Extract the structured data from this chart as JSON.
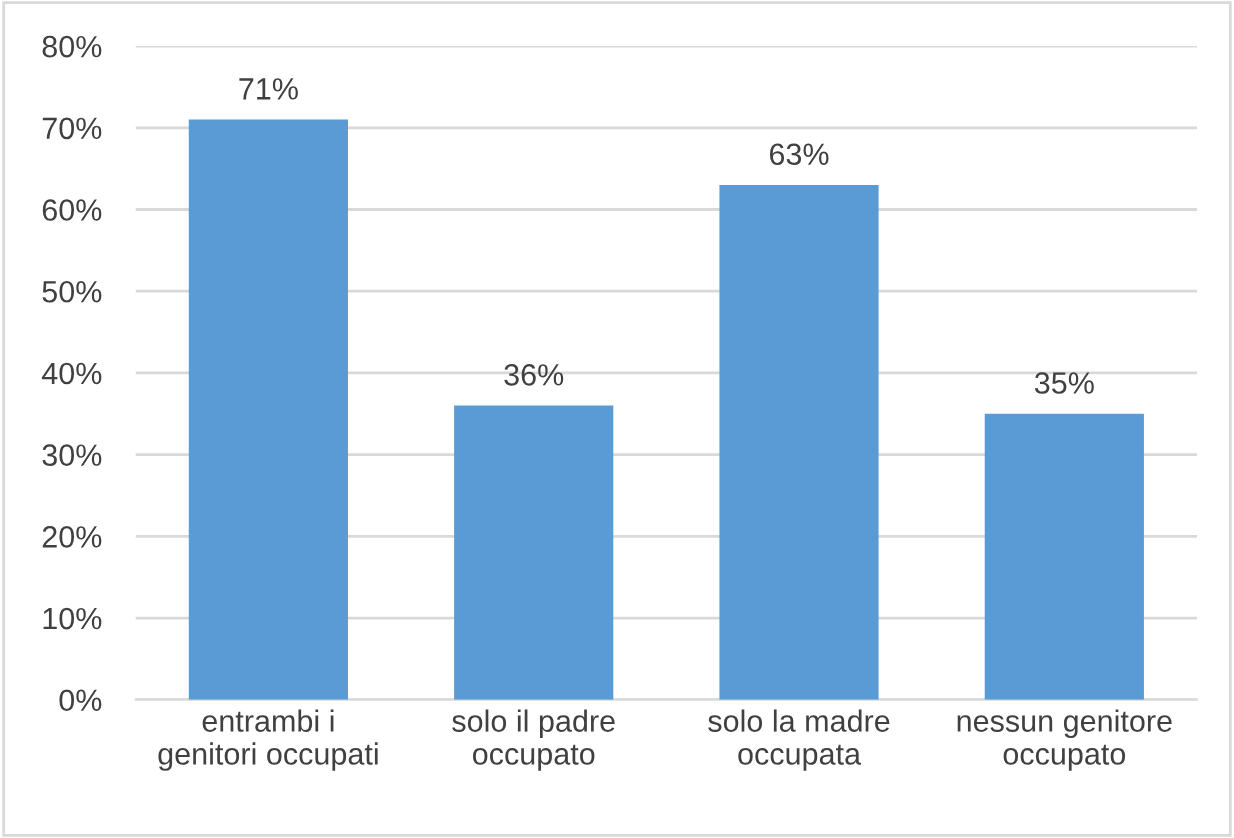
{
  "chart_data": {
    "type": "bar",
    "categories": [
      "entrambi i\ngenitori occupati",
      "solo il padre\noccupato",
      "solo la madre\noccupata",
      "nessun genitore\noccupato"
    ],
    "values": [
      71,
      36,
      63,
      35
    ],
    "value_labels": [
      "71%",
      "36%",
      "63%",
      "35%"
    ],
    "color": "#5b9bd5",
    "ylim": [
      0,
      80
    ],
    "yticks": [
      {
        "value": 0,
        "label": "0%"
      },
      {
        "value": 10,
        "label": "10%"
      },
      {
        "value": 20,
        "label": "20%"
      },
      {
        "value": 30,
        "label": "30%"
      },
      {
        "value": 40,
        "label": "40%"
      },
      {
        "value": 50,
        "label": "50%"
      },
      {
        "value": 60,
        "label": "60%"
      },
      {
        "value": 70,
        "label": "70%"
      },
      {
        "value": 80,
        "label": "80%"
      }
    ],
    "grid": "y"
  }
}
